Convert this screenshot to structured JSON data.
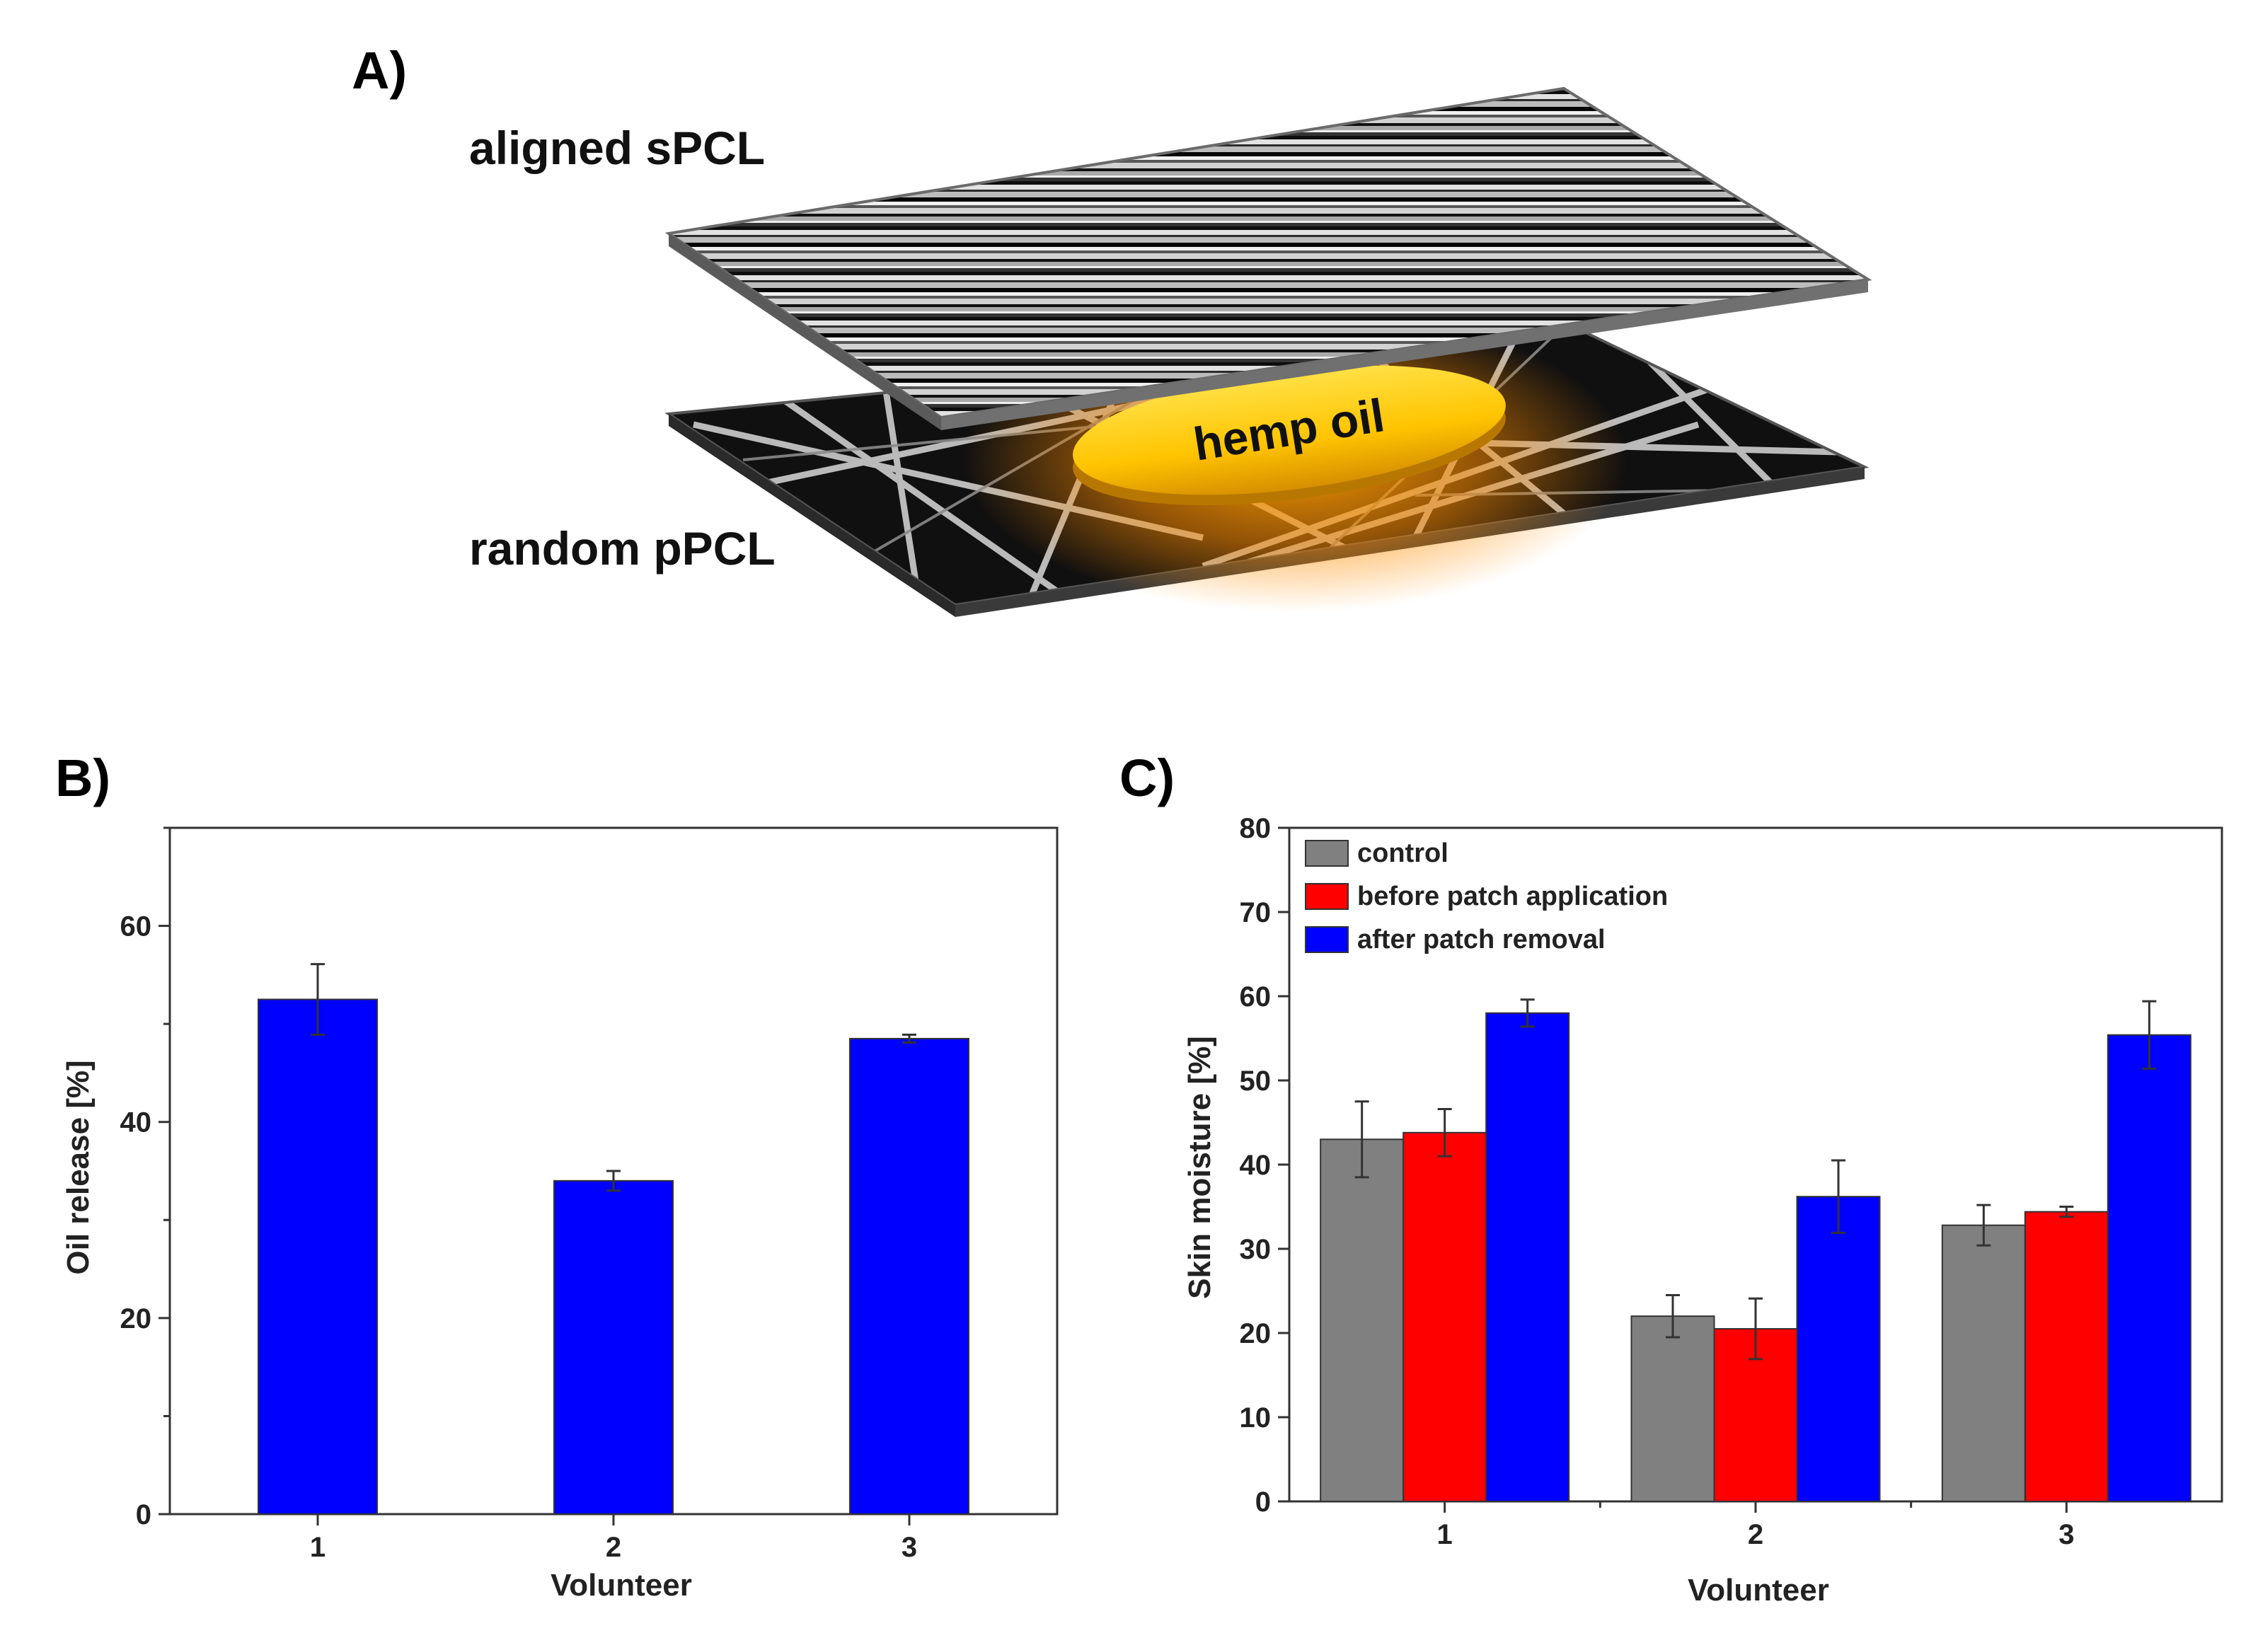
{
  "panels": {
    "a": {
      "letter": "A)",
      "top_layer": "aligned sPCL",
      "bottom_layer": "random pPCL",
      "core": "hemp oil"
    },
    "b": {
      "letter": "B)"
    },
    "c": {
      "letter": "C)"
    }
  },
  "colors": {
    "blue": "#0000ff",
    "red": "#ff0000",
    "grey": "#808080",
    "oil": "#f5b400"
  },
  "chart_data": [
    {
      "type": "bar",
      "panel": "B",
      "categories": [
        "1",
        "2",
        "3"
      ],
      "series": [
        {
          "color": "#0000ff",
          "values": [
            52.5,
            34.0,
            48.5
          ],
          "errors": [
            3.6,
            1.0,
            0.4
          ]
        }
      ],
      "xlabel": "Volunteer",
      "ylabel": "Oil release [%]",
      "ylim": [
        0,
        70
      ],
      "yticks": [
        0,
        20,
        40,
        60
      ],
      "minor_yticks": [
        10,
        30,
        50,
        70
      ],
      "grid": false
    },
    {
      "type": "bar",
      "panel": "C",
      "categories": [
        "1",
        "2",
        "3"
      ],
      "series": [
        {
          "name": "control",
          "color": "#808080",
          "values": [
            43.0,
            22.0,
            32.8
          ],
          "errors": [
            4.5,
            2.5,
            2.4
          ]
        },
        {
          "name": "before patch application",
          "color": "#ff0000",
          "values": [
            43.8,
            20.5,
            34.4
          ],
          "errors": [
            2.8,
            3.6,
            0.6
          ]
        },
        {
          "name": "after patch removal",
          "color": "#0000ff",
          "values": [
            58.0,
            36.2,
            55.4
          ],
          "errors": [
            1.6,
            4.3,
            4.0
          ]
        }
      ],
      "xlabel": "Volunteer",
      "ylabel": "Skin moisture [%]",
      "ylim": [
        0,
        80
      ],
      "yticks": [
        0,
        10,
        20,
        30,
        40,
        50,
        60,
        70,
        80
      ],
      "legend": "top-left",
      "grid": false
    }
  ]
}
